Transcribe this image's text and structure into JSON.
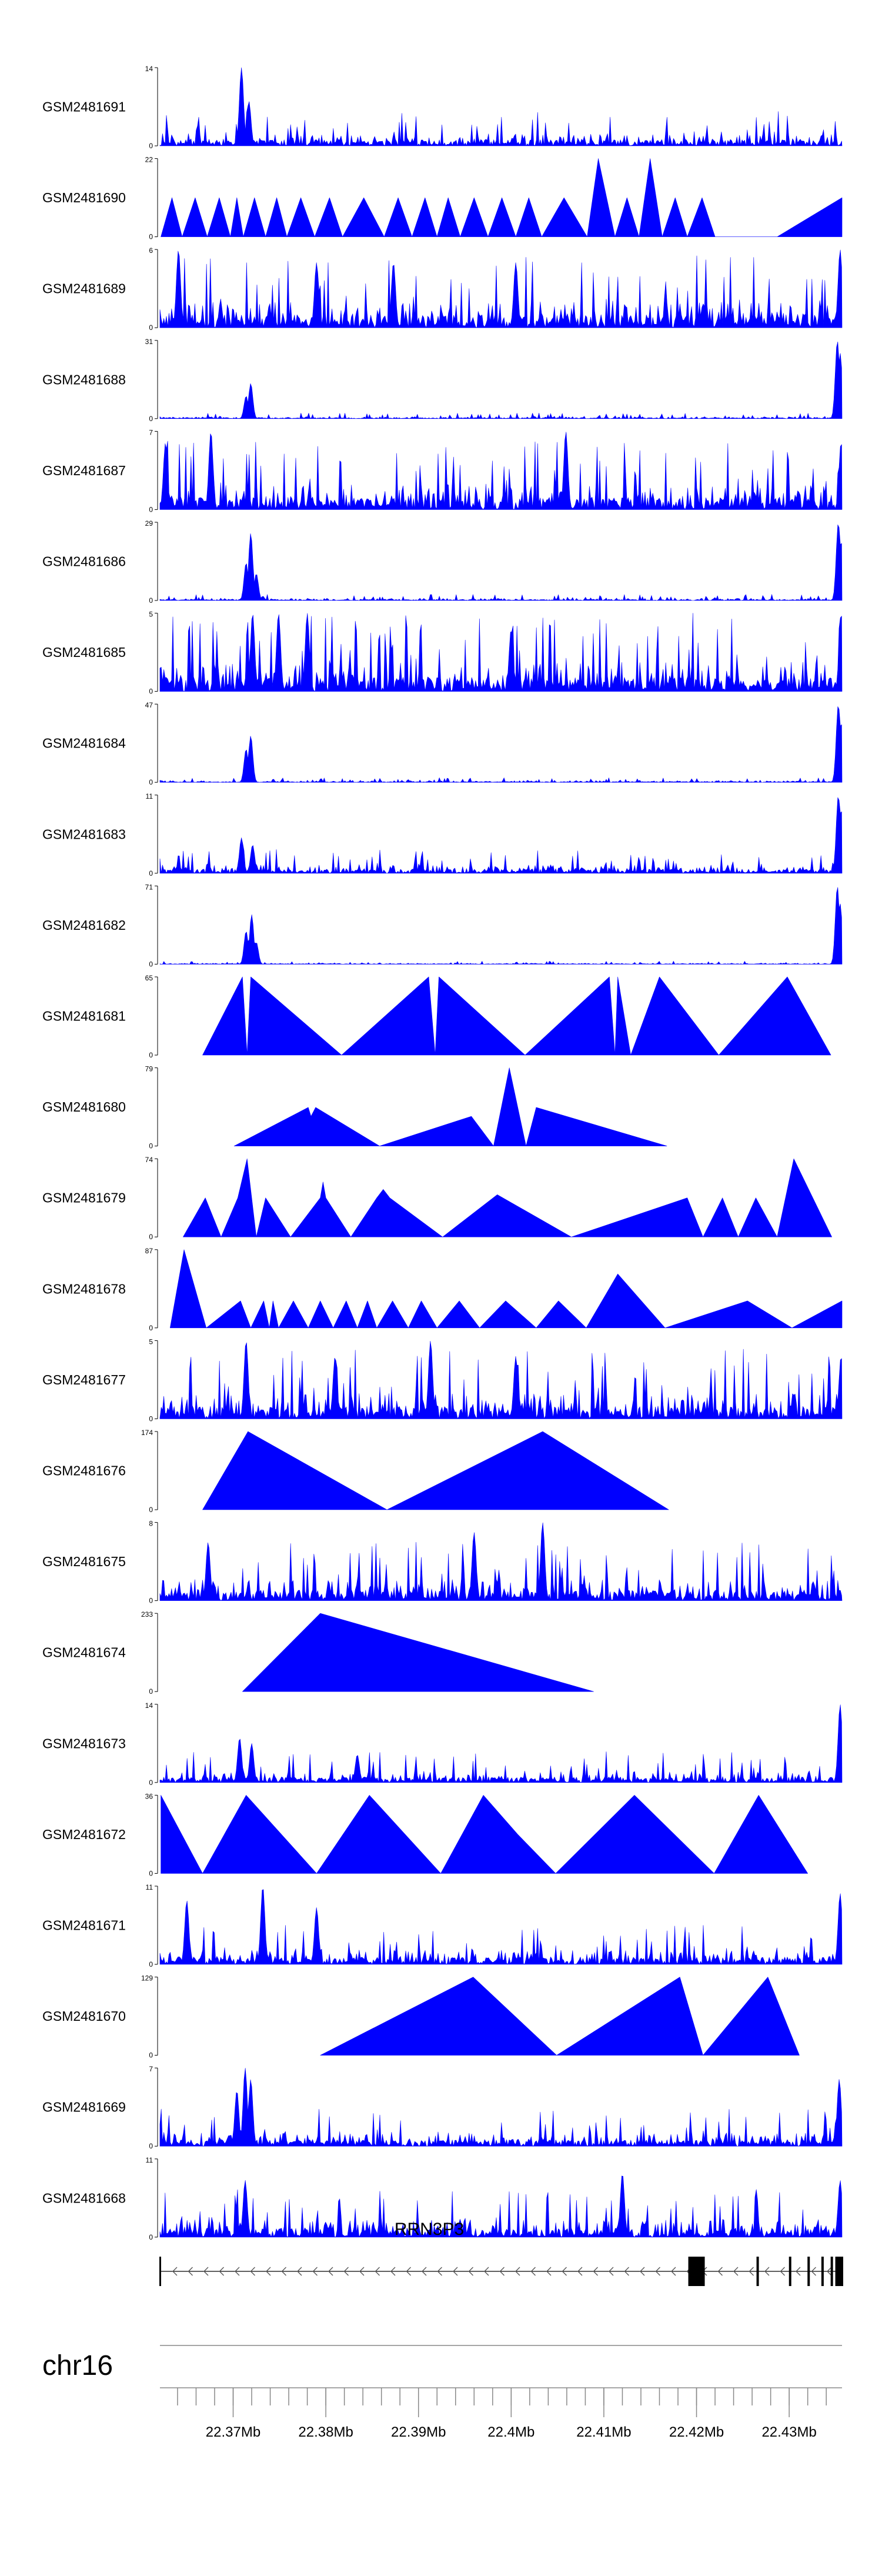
{
  "chart_data": {
    "type": "area",
    "chromosome": "chr16",
    "x_range_mb": [
      22.3621,
      22.4357
    ],
    "fill_color": "#0000ff",
    "gene": {
      "name": "RRN3P3",
      "strand": "-",
      "start_mb": 22.3621,
      "end_mb": 22.4357,
      "exons_mb": [
        22.3621,
        22.42,
        22.4266,
        22.4301,
        22.4321,
        22.4336,
        22.4346,
        22.4351,
        22.4357
      ]
    },
    "axis": {
      "ticks_mb": [
        22.37,
        22.38,
        22.39,
        22.4,
        22.41,
        22.42,
        22.43
      ],
      "tick_labels": [
        "22.37Mb",
        "22.38Mb",
        "22.39Mb",
        "22.4Mb",
        "22.41Mb",
        "22.42Mb",
        "22.43Mb"
      ],
      "minor_step_mb": 0.002
    },
    "tracks": [
      {
        "name": "GSM2481691",
        "ymax": 14,
        "kind": "dense",
        "peaks": [
          [
            22.3709,
            14
          ],
          [
            22.3717,
            8
          ]
        ],
        "baseline": 2.2
      },
      {
        "name": "GSM2481690",
        "ymax": 22,
        "kind": "tri",
        "points": [
          [
            22.3622,
            0
          ],
          [
            22.3634,
            11
          ],
          [
            22.3645,
            0
          ],
          [
            22.3659,
            11
          ],
          [
            22.3672,
            0
          ],
          [
            22.3685,
            11
          ],
          [
            22.3697,
            0
          ],
          [
            22.3704,
            11
          ],
          [
            22.3711,
            0
          ],
          [
            22.3723,
            11
          ],
          [
            22.3735,
            0
          ],
          [
            22.3747,
            11
          ],
          [
            22.3758,
            0
          ],
          [
            22.3773,
            11
          ],
          [
            22.3788,
            0
          ],
          [
            22.3804,
            11
          ],
          [
            22.3818,
            0
          ],
          [
            22.3841,
            11
          ],
          [
            22.3863,
            0
          ],
          [
            22.3878,
            11
          ],
          [
            22.3893,
            0
          ],
          [
            22.3907,
            11
          ],
          [
            22.392,
            0
          ],
          [
            22.3932,
            11
          ],
          [
            22.3945,
            0
          ],
          [
            22.396,
            11
          ],
          [
            22.3975,
            0
          ],
          [
            22.399,
            11
          ],
          [
            22.4005,
            0
          ],
          [
            22.4019,
            11
          ],
          [
            22.4033,
            0
          ],
          [
            22.4057,
            11
          ],
          [
            22.4082,
            0
          ],
          [
            22.4094,
            22
          ],
          [
            22.4112,
            0
          ],
          [
            22.4125,
            11
          ],
          [
            22.4138,
            0
          ],
          [
            22.415,
            22
          ],
          [
            22.4163,
            0
          ],
          [
            22.4177,
            11
          ],
          [
            22.419,
            0
          ],
          [
            22.4206,
            11
          ],
          [
            22.422,
            0
          ],
          [
            22.4287,
            0
          ],
          [
            22.4357,
            11
          ],
          [
            22.4357,
            0
          ]
        ]
      },
      {
        "name": "GSM2481689",
        "ymax": 6,
        "kind": "dense",
        "peaks": [
          [
            22.3641,
            6
          ],
          [
            22.379,
            5
          ],
          [
            22.3873,
            5
          ],
          [
            22.4005,
            5
          ],
          [
            22.4355,
            6
          ]
        ],
        "baseline": 2.0
      },
      {
        "name": "GSM2481688",
        "ymax": 31,
        "kind": "dense",
        "peaks": [
          [
            22.3714,
            9
          ],
          [
            22.3719,
            14
          ],
          [
            22.4352,
            31
          ],
          [
            22.4355,
            26
          ]
        ],
        "baseline": 0.8
      },
      {
        "name": "GSM2481687",
        "ymax": 7,
        "kind": "dense",
        "peaks": [
          [
            22.3627,
            6
          ],
          [
            22.3676,
            7
          ],
          [
            22.4059,
            7
          ],
          [
            22.4356,
            6
          ]
        ],
        "baseline": 2.2
      },
      {
        "name": "GSM2481686",
        "ymax": 29,
        "kind": "dense",
        "peaks": [
          [
            22.3714,
            14
          ],
          [
            22.3719,
            25
          ],
          [
            22.3725,
            10
          ],
          [
            22.4353,
            29
          ],
          [
            22.4356,
            22
          ]
        ],
        "baseline": 0.8
      },
      {
        "name": "GSM2481685",
        "ymax": 5,
        "kind": "dense",
        "peaks": [
          [
            22.3721,
            5
          ],
          [
            22.3749,
            5
          ],
          [
            22.378,
            5
          ],
          [
            22.4,
            4
          ],
          [
            22.4356,
            5
          ]
        ],
        "baseline": 1.8
      },
      {
        "name": "GSM2481684",
        "ymax": 47,
        "kind": "dense",
        "peaks": [
          [
            22.3714,
            20
          ],
          [
            22.3719,
            28
          ],
          [
            22.4353,
            47
          ],
          [
            22.4356,
            36
          ]
        ],
        "baseline": 1.0
      },
      {
        "name": "GSM2481683",
        "ymax": 11,
        "kind": "dense",
        "peaks": [
          [
            22.3709,
            5
          ],
          [
            22.3721,
            4
          ],
          [
            22.4353,
            11
          ],
          [
            22.4356,
            9
          ]
        ],
        "baseline": 1.2
      },
      {
        "name": "GSM2481682",
        "ymax": 71,
        "kind": "dense",
        "peaks": [
          [
            22.3714,
            30
          ],
          [
            22.372,
            45
          ],
          [
            22.3725,
            20
          ],
          [
            22.4352,
            71
          ],
          [
            22.4355,
            55
          ]
        ],
        "baseline": 1.0
      },
      {
        "name": "GSM2481681",
        "ymax": 65,
        "kind": "tri",
        "points": [
          [
            22.3667,
            0
          ],
          [
            22.371,
            65
          ],
          [
            22.3715,
            0
          ],
          [
            22.3719,
            65
          ],
          [
            22.3817,
            0
          ],
          [
            22.3911,
            65
          ],
          [
            22.3918,
            0
          ],
          [
            22.3922,
            65
          ],
          [
            22.4015,
            0
          ],
          [
            22.4106,
            65
          ],
          [
            22.4112,
            0
          ],
          [
            22.4115,
            65
          ],
          [
            22.4129,
            0
          ],
          [
            22.416,
            65
          ],
          [
            22.4224,
            0
          ],
          [
            22.4298,
            65
          ],
          [
            22.4345,
            0
          ]
        ]
      },
      {
        "name": "GSM2481680",
        "ymax": 79,
        "kind": "tri",
        "points": [
          [
            22.3701,
            0
          ],
          [
            22.3781,
            39
          ],
          [
            22.3784,
            30
          ],
          [
            22.3789,
            39
          ],
          [
            22.3858,
            0
          ],
          [
            22.3957,
            30
          ],
          [
            22.3981,
            0
          ],
          [
            22.3998,
            79
          ],
          [
            22.4016,
            0
          ],
          [
            22.4027,
            39
          ],
          [
            22.4168,
            0
          ]
        ]
      },
      {
        "name": "GSM2481679",
        "ymax": 74,
        "kind": "tri",
        "points": [
          [
            22.3646,
            0
          ],
          [
            22.367,
            37
          ],
          [
            22.3687,
            0
          ],
          [
            22.3705,
            37
          ],
          [
            22.3715,
            74
          ],
          [
            22.3725,
            0
          ],
          [
            22.3735,
            37
          ],
          [
            22.3762,
            0
          ],
          [
            22.3794,
            37
          ],
          [
            22.3797,
            52
          ],
          [
            22.38,
            37
          ],
          [
            22.3827,
            0
          ],
          [
            22.3855,
            37
          ],
          [
            22.3862,
            45
          ],
          [
            22.3869,
            37
          ],
          [
            22.3926,
            0
          ],
          [
            22.3985,
            40
          ],
          [
            22.4065,
            0
          ],
          [
            22.419,
            37
          ],
          [
            22.4207,
            0
          ],
          [
            22.4228,
            37
          ],
          [
            22.4245,
            0
          ],
          [
            22.4264,
            37
          ],
          [
            22.4287,
            0
          ],
          [
            22.4305,
            74
          ],
          [
            22.4346,
            0
          ]
        ]
      },
      {
        "name": "GSM2481678",
        "ymax": 87,
        "kind": "tri",
        "points": [
          [
            22.3632,
            0
          ],
          [
            22.3647,
            87
          ],
          [
            22.3671,
            0
          ],
          [
            22.3708,
            30
          ],
          [
            22.3719,
            0
          ],
          [
            22.3733,
            30
          ],
          [
            22.3739,
            0
          ],
          [
            22.3743,
            30
          ],
          [
            22.3749,
            0
          ],
          [
            22.3765,
            30
          ],
          [
            22.3781,
            0
          ],
          [
            22.3794,
            30
          ],
          [
            22.3808,
            0
          ],
          [
            22.3822,
            30
          ],
          [
            22.3834,
            0
          ],
          [
            22.3845,
            30
          ],
          [
            22.3855,
            0
          ],
          [
            22.3872,
            30
          ],
          [
            22.3889,
            0
          ],
          [
            22.3903,
            30
          ],
          [
            22.392,
            0
          ],
          [
            22.3944,
            30
          ],
          [
            22.3966,
            0
          ],
          [
            22.3994,
            30
          ],
          [
            22.4027,
            0
          ],
          [
            22.4051,
            30
          ],
          [
            22.4081,
            0
          ],
          [
            22.4115,
            60
          ],
          [
            22.4166,
            0
          ],
          [
            22.4255,
            30
          ],
          [
            22.4303,
            0
          ],
          [
            22.4357,
            30
          ],
          [
            22.4357,
            0
          ]
        ]
      },
      {
        "name": "GSM2481677",
        "ymax": 5,
        "kind": "dense",
        "peaks": [
          [
            22.3714,
            5
          ],
          [
            22.381,
            4
          ],
          [
            22.3913,
            5
          ],
          [
            22.4005,
            4
          ],
          [
            22.4356,
            4
          ]
        ],
        "baseline": 1.6
      },
      {
        "name": "GSM2481676",
        "ymax": 174,
        "kind": "tri",
        "points": [
          [
            22.3667,
            0
          ],
          [
            22.3716,
            174
          ],
          [
            22.3866,
            0
          ],
          [
            22.4034,
            174
          ],
          [
            22.417,
            0
          ]
        ]
      },
      {
        "name": "GSM2481675",
        "ymax": 8,
        "kind": "dense",
        "peaks": [
          [
            22.3673,
            6
          ],
          [
            22.396,
            7
          ],
          [
            22.4034,
            8
          ]
        ],
        "baseline": 2.2
      },
      {
        "name": "GSM2481674",
        "ymax": 233,
        "kind": "tri",
        "points": [
          [
            22.371,
            0
          ],
          [
            22.3794,
            233
          ],
          [
            22.4089,
            0
          ]
        ]
      },
      {
        "name": "GSM2481673",
        "ymax": 14,
        "kind": "dense",
        "peaks": [
          [
            22.3707,
            8
          ],
          [
            22.372,
            7
          ],
          [
            22.3834,
            5
          ],
          [
            22.4355,
            14
          ]
        ],
        "baseline": 2.0
      },
      {
        "name": "GSM2481672",
        "ymax": 36,
        "kind": "tri",
        "points": [
          [
            22.3622,
            0
          ],
          [
            22.3622,
            36
          ],
          [
            22.3667,
            0
          ],
          [
            22.3714,
            36
          ],
          [
            22.379,
            0
          ],
          [
            22.3847,
            36
          ],
          [
            22.3924,
            0
          ],
          [
            22.397,
            36
          ],
          [
            22.4007,
            18
          ],
          [
            22.4048,
            0
          ],
          [
            22.4133,
            36
          ],
          [
            22.4219,
            0
          ],
          [
            22.4267,
            36
          ],
          [
            22.432,
            0
          ]
        ]
      },
      {
        "name": "GSM2481671",
        "ymax": 11,
        "kind": "dense",
        "peaks": [
          [
            22.365,
            9
          ],
          [
            22.3732,
            11
          ],
          [
            22.379,
            8
          ],
          [
            22.4355,
            10
          ]
        ],
        "baseline": 2.0
      },
      {
        "name": "GSM2481670",
        "ymax": 129,
        "kind": "tri",
        "points": [
          [
            22.3794,
            0
          ],
          [
            22.3959,
            129
          ],
          [
            22.4049,
            0
          ],
          [
            22.4182,
            129
          ],
          [
            22.4207,
            0
          ],
          [
            22.4277,
            129
          ],
          [
            22.4311,
            0
          ]
        ]
      },
      {
        "name": "GSM2481669",
        "ymax": 7,
        "kind": "dense",
        "peaks": [
          [
            22.3704,
            5
          ],
          [
            22.3713,
            7
          ],
          [
            22.3719,
            6
          ],
          [
            22.4354,
            6
          ]
        ],
        "baseline": 1.2
      },
      {
        "name": "GSM2481668",
        "ymax": 11,
        "kind": "dense",
        "peaks": [
          [
            22.3713,
            8
          ],
          [
            22.412,
            9
          ],
          [
            22.4355,
            8
          ]
        ],
        "baseline": 2.4
      }
    ]
  }
}
